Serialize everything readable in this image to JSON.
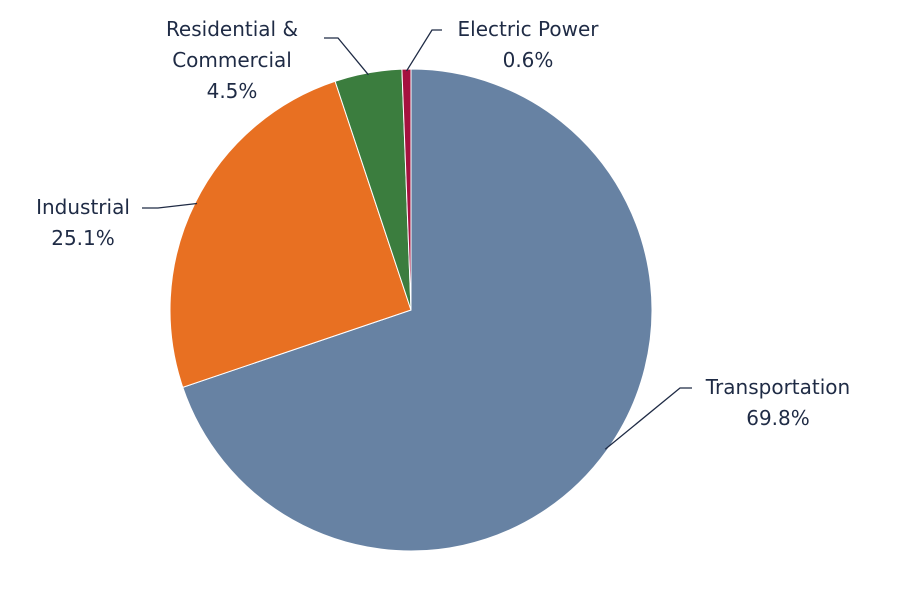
{
  "chart_data": {
    "type": "pie",
    "categories": [
      "Transportation",
      "Industrial",
      "Residential & Commercial",
      "Electric Power"
    ],
    "values": [
      69.8,
      25.1,
      4.5,
      0.6
    ],
    "value_labels": [
      "69.8%",
      "25.1%",
      "4.5%",
      "0.6%"
    ],
    "colors": [
      "#6782a3",
      "#e87022",
      "#3b7d3e",
      "#a5123f"
    ]
  }
}
